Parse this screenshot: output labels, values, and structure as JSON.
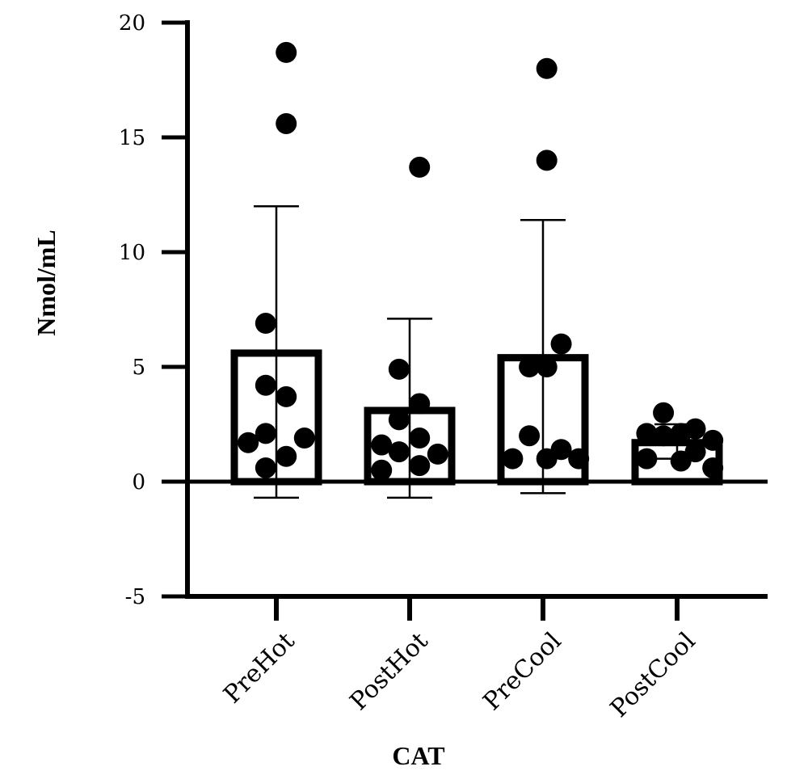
{
  "chart_data": {
    "type": "bar",
    "title": "",
    "xlabel": "CAT",
    "ylabel": "Nmol/mL",
    "ylim": [
      -5,
      20
    ],
    "yticks": [
      "-5",
      "0",
      "5",
      "10",
      "15",
      "20"
    ],
    "categories": [
      "PreHot",
      "PostHot",
      "PreCool",
      "PostCool"
    ],
    "bars": [
      {
        "category": "PreHot",
        "mean": 5.6,
        "error_upper": 12.0,
        "error_lower": -0.7
      },
      {
        "category": "PostHot",
        "mean": 3.1,
        "error_upper": 7.1,
        "error_lower": -0.7
      },
      {
        "category": "PreCool",
        "mean": 5.4,
        "error_upper": 11.4,
        "error_lower": -0.5
      },
      {
        "category": "PostCool",
        "mean": 1.7,
        "error_upper": 2.5,
        "error_lower": 1.0
      }
    ],
    "points": [
      {
        "category": "PreHot",
        "values": [
          18.7,
          15.6,
          6.9,
          4.2,
          3.7,
          2.1,
          1.9,
          1.7,
          1.1,
          0.6
        ],
        "offsets": [
          0.13,
          0.13,
          -0.14,
          -0.14,
          0.13,
          -0.14,
          0.37,
          -0.37,
          0.13,
          -0.14
        ]
      },
      {
        "category": "PostHot",
        "values": [
          13.7,
          4.9,
          3.4,
          2.7,
          1.9,
          1.6,
          1.3,
          1.2,
          0.7,
          0.5
        ],
        "offsets": [
          0.13,
          -0.14,
          0.13,
          -0.14,
          0.13,
          -0.37,
          -0.14,
          0.37,
          0.13,
          -0.37
        ]
      },
      {
        "category": "PreCool",
        "values": [
          18.0,
          14.0,
          6.0,
          5.0,
          5.0,
          2.0,
          1.4,
          1.0,
          1.0,
          1.0
        ],
        "offsets": [
          0.05,
          0.05,
          0.24,
          -0.18,
          0.05,
          -0.18,
          0.24,
          0.05,
          -0.4,
          0.47
        ]
      },
      {
        "category": "PostCool",
        "values": [
          3.0,
          2.3,
          2.1,
          2.1,
          2.0,
          1.8,
          1.3,
          1.0,
          0.9,
          0.6
        ],
        "offsets": [
          -0.18,
          0.24,
          -0.4,
          0.05,
          -0.18,
          0.47,
          0.24,
          -0.4,
          0.05,
          0.47
        ]
      }
    ]
  }
}
